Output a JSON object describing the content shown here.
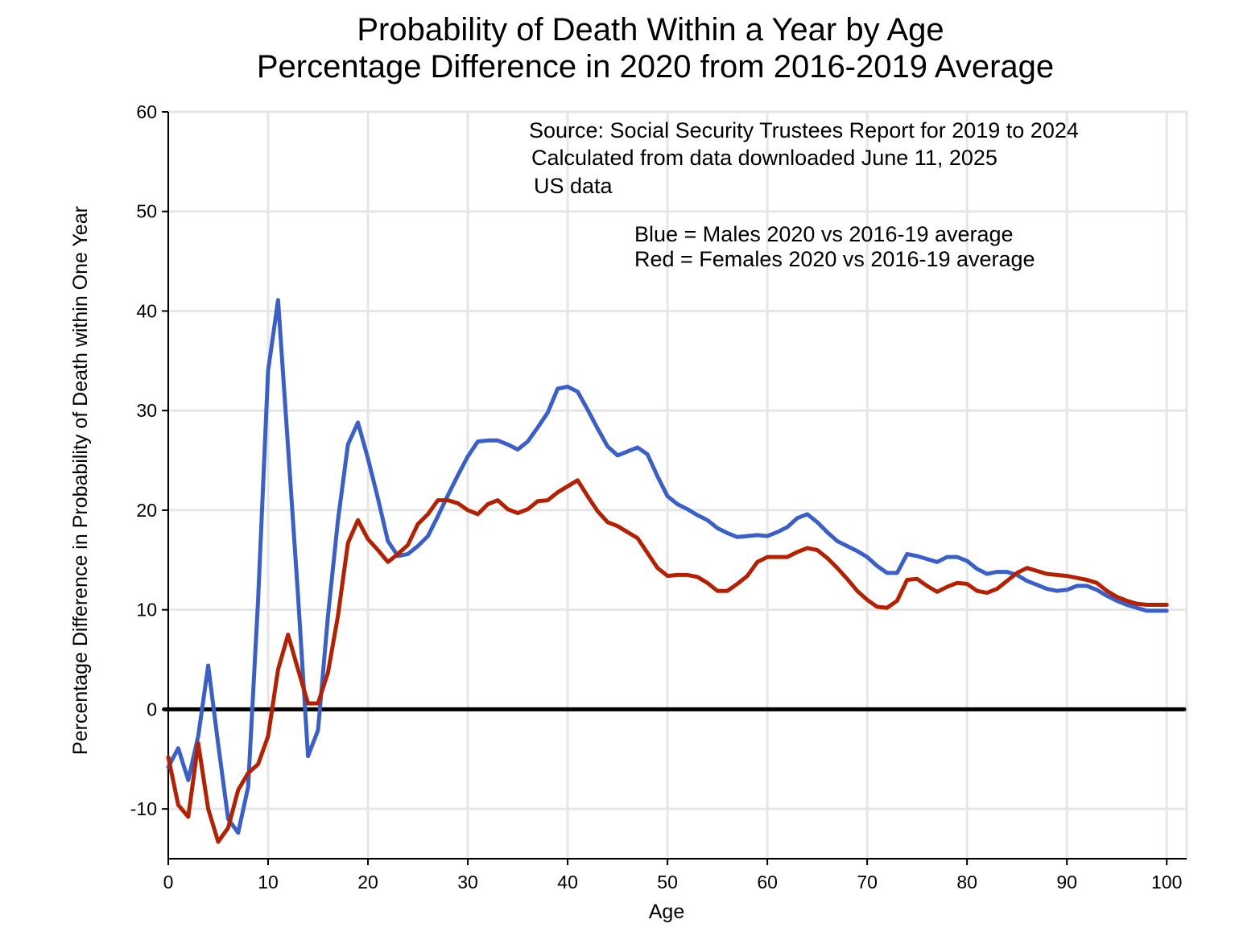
{
  "chart_data": {
    "type": "line",
    "title": "Probability of Death Within a Year by Age",
    "subtitle": "Percentage Difference in 2020 from 2016-2019 Average",
    "xlabel": "Age",
    "ylabel": "Percentage Difference in Probability of Death within One Year",
    "xlim": [
      0,
      102
    ],
    "ylim": [
      -15,
      60
    ],
    "xticks": [
      0,
      10,
      20,
      30,
      40,
      50,
      60,
      70,
      80,
      90,
      100
    ],
    "yticks": [
      -10,
      0,
      10,
      20,
      30,
      40,
      50,
      60
    ],
    "xtick_labels": [
      "0",
      "10",
      "20",
      "30",
      "40",
      "50",
      "60",
      "70",
      "80",
      "90",
      "100"
    ],
    "ytick_labels": [
      "-10",
      "0",
      "10",
      "20",
      "30",
      "40",
      "50",
      "60"
    ],
    "grid": true,
    "reference_line": {
      "y": 0,
      "color": "#000000"
    },
    "annotations": [
      "Source:  Social Security Trustees Report for 2019 to 2024",
      "Calculated from data downloaded June 11, 2025",
      "US data",
      "Blue = Males 2020 vs 2016-19 average",
      "Red = Females 2020 vs 2016-19 average"
    ],
    "x_start": 0,
    "series": [
      {
        "name": "Males 2020 vs 2016-19 average",
        "color": "#3a5fc8",
        "values": [
          -5.8,
          -3.9,
          -7.1,
          -2.7,
          4.4,
          -3.5,
          -11.0,
          -12.4,
          -7.8,
          11.0,
          34.0,
          41.1,
          26.3,
          11.4,
          -4.7,
          -2.1,
          9.4,
          19.0,
          26.6,
          28.8,
          25.2,
          21.2,
          16.9,
          15.4,
          15.6,
          16.4,
          17.4,
          19.4,
          21.5,
          23.5,
          25.4,
          26.9,
          27.0,
          27.0,
          26.6,
          26.1,
          26.9,
          28.3,
          29.8,
          32.2,
          32.4,
          31.9,
          30.1,
          28.2,
          26.4,
          25.5,
          25.9,
          26.3,
          25.6,
          23.4,
          21.4,
          20.6,
          20.1,
          19.5,
          19.0,
          18.2,
          17.7,
          17.3,
          17.4,
          17.5,
          17.4,
          17.8,
          18.3,
          19.2,
          19.6,
          18.8,
          17.8,
          16.9,
          16.4,
          15.9,
          15.3,
          14.4,
          13.7,
          13.7,
          15.6,
          15.4,
          15.1,
          14.8,
          15.3,
          15.3,
          14.9,
          14.1,
          13.6,
          13.8,
          13.8,
          13.5,
          12.9,
          12.5,
          12.1,
          11.9,
          12.0,
          12.4,
          12.4,
          12.0,
          11.4,
          10.9,
          10.5,
          10.2,
          9.9,
          9.9,
          9.9
        ]
      },
      {
        "name": "Females 2020 vs 2016-19 average",
        "color": "#b52100",
        "values": [
          -4.8,
          -9.6,
          -10.8,
          -3.4,
          -10.0,
          -13.3,
          -11.9,
          -8.1,
          -6.4,
          -5.5,
          -2.7,
          4.0,
          7.5,
          4.0,
          0.6,
          0.6,
          3.7,
          9.4,
          16.7,
          19.0,
          17.1,
          16.0,
          14.8,
          15.6,
          16.5,
          18.6,
          19.6,
          21.0,
          21.0,
          20.7,
          20.0,
          19.6,
          20.6,
          21.0,
          20.1,
          19.7,
          20.1,
          20.9,
          21.0,
          21.8,
          22.4,
          23.0,
          21.4,
          19.9,
          18.8,
          18.4,
          17.8,
          17.2,
          15.7,
          14.2,
          13.4,
          13.5,
          13.5,
          13.3,
          12.7,
          11.9,
          11.9,
          12.6,
          13.4,
          14.8,
          15.3,
          15.3,
          15.3,
          15.8,
          16.2,
          16.0,
          15.2,
          14.2,
          13.1,
          11.9,
          11.0,
          10.3,
          10.2,
          10.9,
          13.0,
          13.1,
          12.4,
          11.8,
          12.3,
          12.7,
          12.6,
          11.9,
          11.7,
          12.1,
          12.9,
          13.7,
          14.2,
          13.9,
          13.6,
          13.5,
          13.4,
          13.2,
          13.0,
          12.7,
          11.9,
          11.3,
          10.9,
          10.6,
          10.5,
          10.5,
          10.5
        ]
      }
    ]
  }
}
